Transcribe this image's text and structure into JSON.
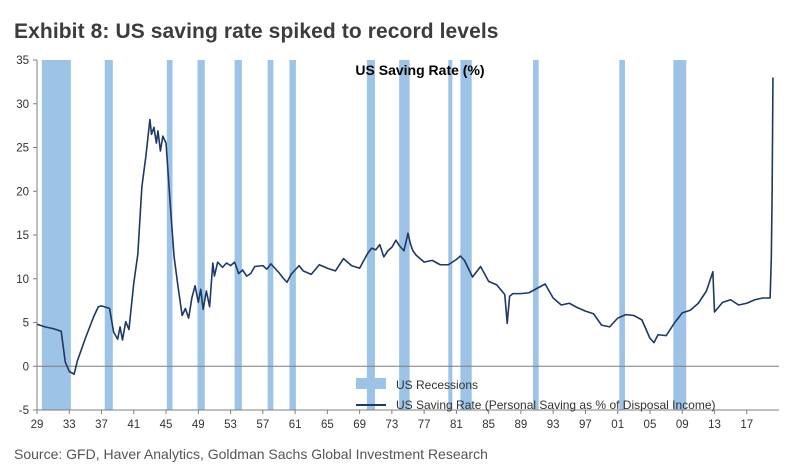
{
  "exhibit": {
    "title": "Exhibit 8: US saving rate spiked to record levels",
    "source": "Source: GFD, Haver Analytics, Goldman Sachs Global Investment Research"
  },
  "colors": {
    "line": "#1f3864",
    "recession": "#9dc3e6",
    "axis": "#7f7f7f"
  },
  "chart_data": {
    "type": "line",
    "title": "US Saving Rate (%)",
    "xlabel": "",
    "ylabel": "",
    "ylim": [
      -5,
      35
    ],
    "xlim": [
      1929,
      2021
    ],
    "y_ticks": [
      -5,
      0,
      5,
      10,
      15,
      20,
      25,
      30,
      35
    ],
    "x_ticks": [
      1929,
      1933,
      1937,
      1941,
      1945,
      1949,
      1953,
      1957,
      1961,
      1965,
      1969,
      1973,
      1977,
      1981,
      1985,
      1989,
      1993,
      1997,
      2001,
      2005,
      2009,
      2013,
      2017
    ],
    "x_tick_labels": [
      "29",
      "33",
      "37",
      "41",
      "45",
      "49",
      "53",
      "57",
      "61",
      "65",
      "69",
      "73",
      "77",
      "81",
      "85",
      "89",
      "93",
      "97",
      "01",
      "05",
      "09",
      "13",
      "17"
    ],
    "grid": false,
    "legend_placement": "bottom-center",
    "recessions": [
      {
        "start": 1929.6,
        "end": 1933.2
      },
      {
        "start": 1937.4,
        "end": 1938.4
      },
      {
        "start": 1945.1,
        "end": 1945.8
      },
      {
        "start": 1948.9,
        "end": 1949.8
      },
      {
        "start": 1953.5,
        "end": 1954.4
      },
      {
        "start": 1957.6,
        "end": 1958.3
      },
      {
        "start": 1960.3,
        "end": 1961.1
      },
      {
        "start": 1969.9,
        "end": 1970.9
      },
      {
        "start": 1973.9,
        "end": 1975.2
      },
      {
        "start": 1980.0,
        "end": 1980.5
      },
      {
        "start": 1981.5,
        "end": 1982.9
      },
      {
        "start": 1990.5,
        "end": 1991.2
      },
      {
        "start": 2001.2,
        "end": 2001.9
      },
      {
        "start": 2007.9,
        "end": 2009.5
      }
    ],
    "series": [
      {
        "name": "US Saving Rate (Personal Saving as % of Disposal Income)",
        "points": [
          [
            1929,
            4.8
          ],
          [
            1930,
            4.5
          ],
          [
            1931,
            4.3
          ],
          [
            1932,
            4.0
          ],
          [
            1932.5,
            0.5
          ],
          [
            1933,
            -0.6
          ],
          [
            1933.6,
            -0.9
          ],
          [
            1934,
            0.6
          ],
          [
            1935,
            3.2
          ],
          [
            1936,
            5.6
          ],
          [
            1936.6,
            6.8
          ],
          [
            1937,
            6.9
          ],
          [
            1938,
            6.6
          ],
          [
            1938.5,
            3.9
          ],
          [
            1939,
            3.1
          ],
          [
            1939.3,
            4.5
          ],
          [
            1939.6,
            3.0
          ],
          [
            1940,
            5.1
          ],
          [
            1940.4,
            4.2
          ],
          [
            1941,
            9.5
          ],
          [
            1941.5,
            12.8
          ],
          [
            1942,
            20.5
          ],
          [
            1942.5,
            24.0
          ],
          [
            1943,
            28.2
          ],
          [
            1943.2,
            26.5
          ],
          [
            1943.5,
            27.3
          ],
          [
            1943.8,
            25.5
          ],
          [
            1944,
            26.9
          ],
          [
            1944.3,
            24.6
          ],
          [
            1944.6,
            26.3
          ],
          [
            1945,
            25.5
          ],
          [
            1945.3,
            21.5
          ],
          [
            1945.6,
            17.5
          ],
          [
            1946,
            12.5
          ],
          [
            1946.5,
            9.0
          ],
          [
            1947,
            5.8
          ],
          [
            1947.4,
            6.6
          ],
          [
            1947.8,
            5.5
          ],
          [
            1948.2,
            7.8
          ],
          [
            1948.6,
            9.2
          ],
          [
            1949,
            7.3
          ],
          [
            1949.3,
            8.8
          ],
          [
            1949.6,
            6.5
          ],
          [
            1950,
            8.6
          ],
          [
            1950.4,
            6.8
          ],
          [
            1950.8,
            11.8
          ],
          [
            1951,
            10.3
          ],
          [
            1951.4,
            11.9
          ],
          [
            1952,
            11.3
          ],
          [
            1952.5,
            11.8
          ],
          [
            1953,
            11.5
          ],
          [
            1953.5,
            11.9
          ],
          [
            1954,
            10.6
          ],
          [
            1954.5,
            11.0
          ],
          [
            1955,
            10.3
          ],
          [
            1955.5,
            10.6
          ],
          [
            1956,
            11.4
          ],
          [
            1957,
            11.5
          ],
          [
            1957.5,
            11.1
          ],
          [
            1958,
            11.7
          ],
          [
            1958.5,
            11.2
          ],
          [
            1959,
            10.7
          ],
          [
            1959.5,
            10.1
          ],
          [
            1960,
            9.6
          ],
          [
            1960.5,
            10.5
          ],
          [
            1961,
            11.0
          ],
          [
            1961.5,
            11.5
          ],
          [
            1962,
            10.9
          ],
          [
            1963,
            10.5
          ],
          [
            1964,
            11.6
          ],
          [
            1965,
            11.2
          ],
          [
            1966,
            10.9
          ],
          [
            1967,
            12.3
          ],
          [
            1968,
            11.5
          ],
          [
            1969,
            11.2
          ],
          [
            1970,
            12.9
          ],
          [
            1970.5,
            13.5
          ],
          [
            1971,
            13.3
          ],
          [
            1971.5,
            13.9
          ],
          [
            1972,
            12.5
          ],
          [
            1972.5,
            13.2
          ],
          [
            1973,
            13.6
          ],
          [
            1973.5,
            14.4
          ],
          [
            1974,
            13.7
          ],
          [
            1974.5,
            13.2
          ],
          [
            1975,
            15.2
          ],
          [
            1975.3,
            14.0
          ],
          [
            1975.6,
            13.2
          ],
          [
            1976,
            12.7
          ],
          [
            1977,
            11.9
          ],
          [
            1978,
            12.1
          ],
          [
            1979,
            11.6
          ],
          [
            1980,
            11.6
          ],
          [
            1981,
            12.2
          ],
          [
            1981.5,
            12.6
          ],
          [
            1982,
            12.1
          ],
          [
            1983,
            10.2
          ],
          [
            1984,
            11.4
          ],
          [
            1985,
            9.7
          ],
          [
            1986,
            9.3
          ],
          [
            1987,
            8.2
          ],
          [
            1987.3,
            4.9
          ],
          [
            1987.6,
            8.0
          ],
          [
            1988,
            8.3
          ],
          [
            1989,
            8.3
          ],
          [
            1990,
            8.4
          ],
          [
            1991,
            8.9
          ],
          [
            1992,
            9.4
          ],
          [
            1993,
            7.8
          ],
          [
            1994,
            7.0
          ],
          [
            1995,
            7.2
          ],
          [
            1996,
            6.7
          ],
          [
            1997,
            6.3
          ],
          [
            1998,
            6.0
          ],
          [
            1999,
            4.7
          ],
          [
            2000,
            4.5
          ],
          [
            2001,
            5.5
          ],
          [
            2002,
            5.9
          ],
          [
            2003,
            5.8
          ],
          [
            2004,
            5.3
          ],
          [
            2005,
            3.2
          ],
          [
            2005.5,
            2.7
          ],
          [
            2006,
            3.6
          ],
          [
            2007,
            3.5
          ],
          [
            2008,
            4.9
          ],
          [
            2009,
            6.1
          ],
          [
            2010,
            6.4
          ],
          [
            2011,
            7.2
          ],
          [
            2012,
            8.6
          ],
          [
            2012.8,
            10.8
          ],
          [
            2013,
            6.2
          ],
          [
            2014,
            7.3
          ],
          [
            2015,
            7.6
          ],
          [
            2016,
            7.0
          ],
          [
            2017,
            7.2
          ],
          [
            2018,
            7.6
          ],
          [
            2019,
            7.8
          ],
          [
            2019.9,
            7.8
          ],
          [
            2020.05,
            12.5
          ],
          [
            2020.15,
            20.0
          ],
          [
            2020.25,
            33.0
          ]
        ]
      }
    ],
    "legend": {
      "recession_label": "US Recessions"
    }
  }
}
